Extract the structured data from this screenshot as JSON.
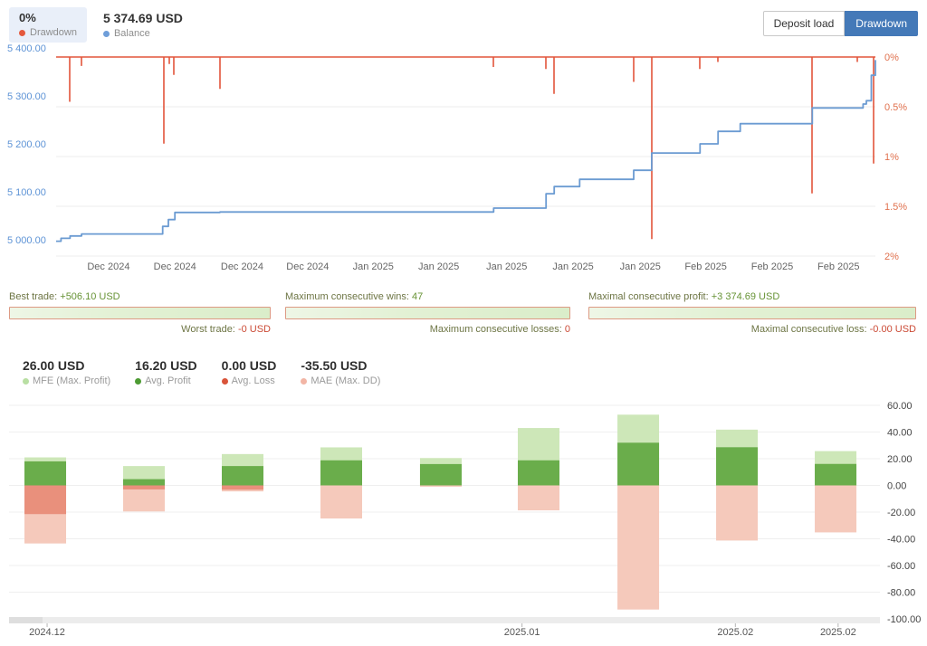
{
  "header": {
    "drawdown_pct": "0%",
    "drawdown_label": "Drawdown",
    "drawdown_color": "#e4593d",
    "balance_value": "5 374.69 USD",
    "balance_label": "Balance",
    "balance_color": "#6f9ed9",
    "buttons": {
      "deposit_load": "Deposit load",
      "drawdown": "Drawdown"
    }
  },
  "stats_bars": [
    {
      "top_label": "Best trade:",
      "top_value": "+506.10 USD",
      "bottom_label": "Worst trade:",
      "bottom_value": "-0 USD"
    },
    {
      "top_label": "Maximum consecutive wins:",
      "top_value": "47",
      "bottom_label": "Maximum consecutive losses:",
      "bottom_value": "0"
    },
    {
      "top_label": "Maximal consecutive profit:",
      "top_value": "+3 374.69 USD",
      "bottom_label": "Maximal consecutive loss:",
      "bottom_value": "-0.00 USD"
    }
  ],
  "stat_blocks": [
    {
      "value": "26.00 USD",
      "label": "MFE (Max. Profit)",
      "dot": "#b9dfa3"
    },
    {
      "value": "16.20 USD",
      "label": "Avg. Profit",
      "dot": "#4d9b33"
    },
    {
      "value": "0.00 USD",
      "label": "Avg. Loss",
      "dot": "#d9543a"
    },
    {
      "value": "-35.50 USD",
      "label": "MAE (Max. DD)",
      "dot": "#f2b5a5"
    }
  ],
  "chart_data": [
    {
      "type": "line",
      "title": "Balance and Drawdown",
      "grid": true,
      "price_axis": {
        "side": "left",
        "color": "#5d93d6",
        "min": 5000,
        "max": 5400,
        "ticks": [
          {
            "value": 5400,
            "label": "5 400.00"
          },
          {
            "value": 5300,
            "label": "5 300.00"
          },
          {
            "value": 5200,
            "label": "5 200.00"
          },
          {
            "value": 5100,
            "label": "5 100.00"
          },
          {
            "value": 5000,
            "label": "5 000.00"
          }
        ]
      },
      "percent_axis": {
        "side": "right",
        "color": "#e0714e",
        "min": 0,
        "max": 2,
        "ticks": [
          {
            "value": 0,
            "label": "0%"
          },
          {
            "value": 0.5,
            "label": "0.5%"
          },
          {
            "value": 1,
            "label": "1%"
          },
          {
            "value": 1.5,
            "label": "1.5%"
          },
          {
            "value": 2,
            "label": "2%"
          }
        ]
      },
      "x_labels": [
        {
          "text": "Dec 2024",
          "f": 0.064
        },
        {
          "text": "Dec 2024",
          "f": 0.145
        },
        {
          "text": "Dec 2024",
          "f": 0.227
        },
        {
          "text": "Dec 2024",
          "f": 0.307
        },
        {
          "text": "Jan 2025",
          "f": 0.387
        },
        {
          "text": "Jan 2025",
          "f": 0.467
        },
        {
          "text": "Jan 2025",
          "f": 0.55
        },
        {
          "text": "Jan 2025",
          "f": 0.631
        },
        {
          "text": "Jan 2025",
          "f": 0.713
        },
        {
          "text": "Feb 2025",
          "f": 0.793
        },
        {
          "text": "Feb 2025",
          "f": 0.874
        },
        {
          "text": "Feb 2025",
          "f": 0.955
        }
      ],
      "series": [
        {
          "name": "Balance",
          "color": "#6b9bd2",
          "axis": "price",
          "style": "step",
          "points": [
            [
              0.0,
              4997
            ],
            [
              0.006,
              5003
            ],
            [
              0.017,
              5008
            ],
            [
              0.031,
              5012
            ],
            [
              0.13,
              5028
            ],
            [
              0.137,
              5042
            ],
            [
              0.145,
              5057
            ],
            [
              0.2,
              5058
            ],
            [
              0.534,
              5066
            ],
            [
              0.598,
              5096
            ],
            [
              0.608,
              5111
            ],
            [
              0.639,
              5126
            ],
            [
              0.705,
              5145
            ],
            [
              0.727,
              5181
            ],
            [
              0.786,
              5200
            ],
            [
              0.808,
              5226
            ],
            [
              0.835,
              5242
            ],
            [
              0.923,
              5275
            ],
            [
              0.985,
              5283
            ],
            [
              0.989,
              5290
            ],
            [
              0.995,
              5343
            ],
            [
              1.0,
              5374.69
            ]
          ]
        },
        {
          "name": "Drawdown",
          "color": "#e2553b",
          "axis": "percent",
          "style": "spikes",
          "baseline": 0,
          "spikes": [
            [
              0.0166,
              0.45
            ],
            [
              0.0309,
              0.09
            ],
            [
              0.1315,
              0.87
            ],
            [
              0.1381,
              0.07
            ],
            [
              0.1436,
              0.18
            ],
            [
              0.2,
              0.32
            ],
            [
              0.5337,
              0.1
            ],
            [
              0.5978,
              0.12
            ],
            [
              0.6077,
              0.37
            ],
            [
              0.705,
              0.25
            ],
            [
              0.7271,
              1.83
            ],
            [
              0.7856,
              0.12
            ],
            [
              0.8077,
              0.05
            ],
            [
              0.9227,
              1.37
            ],
            [
              0.9779,
              0.05
            ],
            [
              0.9978,
              1.07
            ]
          ]
        }
      ]
    },
    {
      "type": "bar",
      "title": "MFE / MAE distribution per period",
      "grid": true,
      "y_axis": {
        "side": "right",
        "color": "#444444",
        "min": -100,
        "max": 60,
        "ticks": [
          {
            "value": 60,
            "label": "60.00"
          },
          {
            "value": 40,
            "label": "40.00"
          },
          {
            "value": 20,
            "label": "20.00"
          },
          {
            "value": 0,
            "label": "0.00"
          },
          {
            "value": -20,
            "label": "-20.00"
          },
          {
            "value": -40,
            "label": "-40.00"
          },
          {
            "value": -60,
            "label": "-60.00"
          },
          {
            "value": -80,
            "label": "-80.00"
          },
          {
            "value": -100,
            "label": "-100.00"
          }
        ]
      },
      "colors": {
        "mfe": "#cde7b8",
        "profit": "#6aad4b",
        "loss": "#e9907c",
        "mae": "#f5c9bb"
      },
      "bars": [
        {
          "x": 0.0416,
          "mfe": 21.0,
          "profit": 18.0,
          "loss": -21.5,
          "mae": -43.5
        },
        {
          "x": 0.1549,
          "mfe": 14.5,
          "profit": 4.7,
          "loss": -3.0,
          "mae": -19.5
        },
        {
          "x": 0.2682,
          "mfe": 23.5,
          "profit": 14.5,
          "loss": -3.2,
          "mae": -4.5
        },
        {
          "x": 0.3815,
          "mfe": 28.5,
          "profit": 18.8,
          "loss": 0,
          "mae": -24.8
        },
        {
          "x": 0.4958,
          "mfe": 20.5,
          "profit": 16.0,
          "loss": 0,
          "mae": -1.0
        },
        {
          "x": 0.6081,
          "mfe": 43.0,
          "profit": 18.8,
          "loss": 0,
          "mae": -18.7
        },
        {
          "x": 0.7225,
          "mfe": 53.0,
          "profit": 32.0,
          "loss": 0,
          "mae": -93.0
        },
        {
          "x": 0.8358,
          "mfe": 41.8,
          "profit": 28.6,
          "loss": 0,
          "mae": -41.3
        },
        {
          "x": 0.9491,
          "mfe": 25.7,
          "profit": 16.1,
          "loss": 0,
          "mae": -35.2
        }
      ],
      "x_labels": [
        {
          "text": "2024.12",
          "f": 0.0437
        },
        {
          "text": "2025.01",
          "f": 0.589
        },
        {
          "text": "2025.02",
          "f": 0.834
        },
        {
          "text": "2025.02",
          "f": 0.952
        }
      ]
    }
  ]
}
